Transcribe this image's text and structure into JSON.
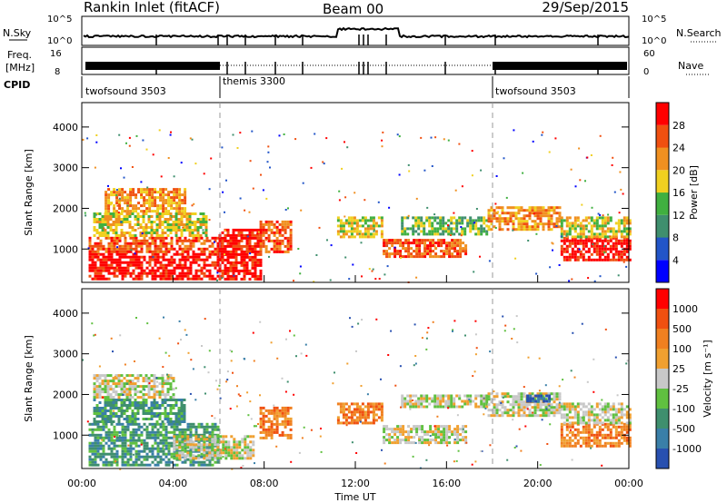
{
  "header": {
    "station": "Rankin Inlet (fitACF)",
    "beam": "Beam 00",
    "date": "29/Sep/2015"
  },
  "summary_panels": {
    "nsky_label": "N.Sky",
    "nsky_ticks": [
      "10^5",
      "10^0"
    ],
    "nsearch_label": "N.Search",
    "nsearch_ticks": [
      "10^5",
      "10^0"
    ],
    "freq_label": "Freq.",
    "freq_unit": "[MHz]",
    "freq_ticks": [
      "16",
      "8"
    ],
    "nave_label": "Nave",
    "nave_ticks": [
      "60",
      "0"
    ],
    "cpid_label": "CPID"
  },
  "chart_data": [
    {
      "type": "heatmap",
      "panel": "power",
      "ylabel": "Slant Range [km]",
      "xlabel": "",
      "x_ticks": [
        "00:00",
        "04:00",
        "08:00",
        "12:00",
        "16:00",
        "20:00",
        "00:00"
      ],
      "xlim_hours": [
        0,
        24
      ],
      "y_ticks": [
        "1000",
        "2000",
        "3000",
        "4000"
      ],
      "ylim": [
        180,
        4600
      ],
      "colorbar_label": "Power [dB]",
      "colorbar_ticks": [
        "28",
        "24",
        "20",
        "16",
        "12",
        "8",
        "4"
      ],
      "colorbar_colors": [
        "#0000ff",
        "#2255c8",
        "#3f8f6e",
        "#40b040",
        "#f0d020",
        "#f09020",
        "#f05010",
        "#ff0000"
      ],
      "regions": [
        {
          "t0": 0.3,
          "t1": 6.0,
          "r0": 250,
          "r1": 900,
          "level": 7
        },
        {
          "t0": 0.3,
          "t1": 6.0,
          "r0": 900,
          "r1": 1300,
          "level": 6
        },
        {
          "t0": 0.5,
          "t1": 5.5,
          "r0": 1300,
          "r1": 1900,
          "level": 4
        },
        {
          "t0": 1.0,
          "t1": 4.5,
          "r0": 1900,
          "r1": 2500,
          "level": 5
        },
        {
          "t0": 6.0,
          "t1": 7.8,
          "r0": 250,
          "r1": 1500,
          "level": 7
        },
        {
          "t0": 7.8,
          "t1": 9.2,
          "r0": 900,
          "r1": 1700,
          "level": 6
        },
        {
          "t0": 11.2,
          "t1": 13.2,
          "r0": 1300,
          "r1": 1800,
          "level": 4
        },
        {
          "t0": 13.2,
          "t1": 16.8,
          "r0": 800,
          "r1": 1250,
          "level": 6
        },
        {
          "t0": 14.0,
          "t1": 17.8,
          "r0": 1350,
          "r1": 1800,
          "level": 3
        },
        {
          "t0": 17.8,
          "t1": 21.0,
          "r0": 1500,
          "r1": 2050,
          "level": 5
        },
        {
          "t0": 21.0,
          "t1": 24.0,
          "r0": 700,
          "r1": 1300,
          "level": 7
        },
        {
          "t0": 21.0,
          "t1": 24.0,
          "r0": 1300,
          "r1": 1800,
          "level": 4
        }
      ]
    },
    {
      "type": "heatmap",
      "panel": "velocity",
      "ylabel": "Slant Range [km]",
      "xlabel": "Time UT",
      "x_ticks": [
        "00:00",
        "04:00",
        "08:00",
        "12:00",
        "16:00",
        "20:00",
        "00:00"
      ],
      "xlim_hours": [
        0,
        24
      ],
      "y_ticks": [
        "1000",
        "2000",
        "3000",
        "4000"
      ],
      "ylim": [
        180,
        4600
      ],
      "colorbar_label": "Velocity [m s⁻¹]",
      "colorbar_ticks": [
        "1000",
        "500",
        "100",
        "25",
        "-25",
        "-100",
        "-500",
        "-1000"
      ],
      "colorbar_colors": [
        "#2850b0",
        "#3a7fa8",
        "#3f8f6e",
        "#60c040",
        "#c8c8c8",
        "#f0a030",
        "#f08020",
        "#f05010",
        "#ff0000"
      ],
      "regions": [
        {
          "t0": 0.3,
          "t1": 6.0,
          "r0": 250,
          "r1": 900,
          "level": 2
        },
        {
          "t0": 0.3,
          "t1": 6.0,
          "r0": 900,
          "r1": 1300,
          "level": 2
        },
        {
          "t0": 0.5,
          "t1": 4.5,
          "r0": 1300,
          "r1": 1900,
          "level": 2
        },
        {
          "t0": 0.5,
          "t1": 4.0,
          "r0": 1900,
          "r1": 2500,
          "level": 4
        },
        {
          "t0": 4.0,
          "t1": 7.5,
          "r0": 400,
          "r1": 1000,
          "level": 4
        },
        {
          "t0": 7.8,
          "t1": 9.2,
          "r0": 900,
          "r1": 1700,
          "level": 6
        },
        {
          "t0": 11.2,
          "t1": 13.2,
          "r0": 1300,
          "r1": 1800,
          "level": 6
        },
        {
          "t0": 13.2,
          "t1": 16.8,
          "r0": 800,
          "r1": 1250,
          "level": 4
        },
        {
          "t0": 14.0,
          "t1": 17.8,
          "r0": 1700,
          "r1": 2000,
          "level": 4
        },
        {
          "t0": 17.8,
          "t1": 21.0,
          "r0": 1500,
          "r1": 2050,
          "level": 4
        },
        {
          "t0": 19.5,
          "t1": 20.5,
          "r0": 1800,
          "r1": 2000,
          "level": 0
        },
        {
          "t0": 21.0,
          "t1": 24.0,
          "r0": 700,
          "r1": 1300,
          "level": 6
        },
        {
          "t0": 21.0,
          "t1": 24.0,
          "r0": 1300,
          "r1": 1800,
          "level": 4
        }
      ]
    }
  ],
  "cpid_segments": [
    {
      "t0": 0,
      "t1": 6.0,
      "label": "twofsound 3503"
    },
    {
      "t0": 6.0,
      "t1": 18.0,
      "label": "themis 3300"
    },
    {
      "t0": 18.0,
      "t1": 24.0,
      "label": "twofsound 3503"
    }
  ]
}
